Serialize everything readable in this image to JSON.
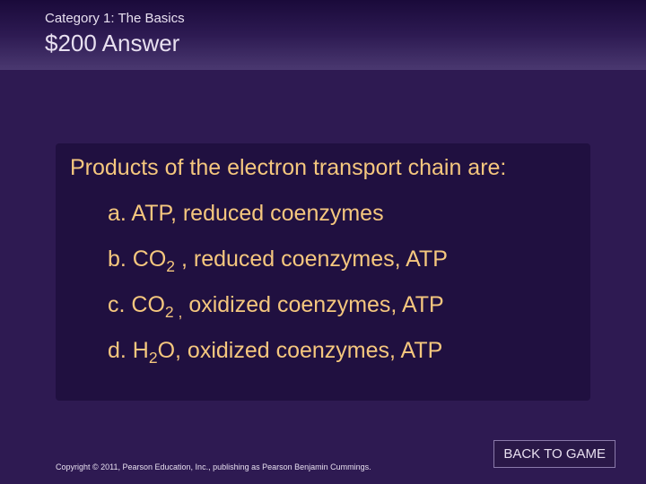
{
  "colors": {
    "slide_bg": "#2e1a52",
    "header_text": "#e8e0f0",
    "content_bg": "#201040",
    "question_text": "#f5c77e",
    "copyright_text": "#e8e0f0",
    "button_bg": "#2a1848",
    "button_border": "#8a7aaa",
    "button_text": "#e8e0f0"
  },
  "header": {
    "category": "Category 1: The Basics",
    "value": "$200",
    "answer_label": "Answer"
  },
  "question": "Products of the electron transport chain are:",
  "options": {
    "a": {
      "prefix": "a. ",
      "pre": "ATP, reduced coenzymes",
      "sub": "",
      "post": ""
    },
    "b": {
      "prefix": "b. ",
      "pre": "CO",
      "sub": "2",
      "post": " , reduced coenzymes, ATP"
    },
    "c": {
      "prefix": "c. ",
      "pre": "CO",
      "sub": "2 ,",
      "post": " oxidized coenzymes, ATP"
    },
    "d": {
      "prefix": "d. ",
      "pre": "H",
      "sub": "2",
      "post": "O, oxidized coenzymes, ATP"
    }
  },
  "copyright": "Copyright © 2011, Pearson Education, Inc., publishing as Pearson Benjamin Cummings.",
  "back_button": "BACK TO GAME"
}
